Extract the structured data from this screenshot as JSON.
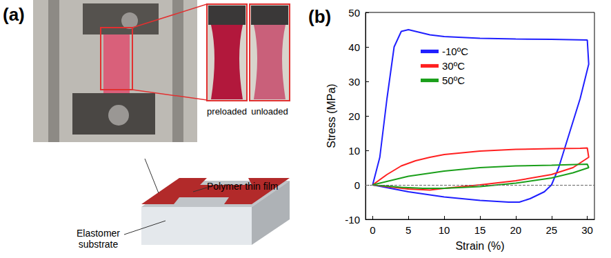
{
  "panel_a": {
    "title": "(a)",
    "photo_labels": [
      "preloaded",
      "unloaded"
    ],
    "schematic_labels": [
      "Polymer thin film",
      "Elastomer substrate"
    ]
  },
  "chart_data": {
    "type": "line",
    "title": "(b)",
    "x_label": "Strain (%)",
    "y_label": "Stress (MPa)",
    "xlim": [
      -1,
      31
    ],
    "xticks": [
      0,
      5,
      10,
      15,
      20,
      25,
      30
    ],
    "ylim": [
      -10,
      50
    ],
    "yticks": [
      -10,
      0,
      10,
      20,
      30,
      40,
      50
    ],
    "grid": false,
    "legend": "upper left",
    "reference_lines": [
      {
        "y": 0,
        "line_style": "dashed"
      }
    ],
    "series": [
      {
        "name": "-10ºC",
        "color": "#1f1fff",
        "x": [
          0,
          1,
          2,
          3,
          4,
          5,
          6,
          8,
          10,
          15,
          20,
          25,
          30,
          30.2,
          29,
          27.5,
          26,
          25,
          24,
          22,
          20.5,
          19,
          15,
          10,
          5,
          2,
          0
        ],
        "values": [
          0,
          8,
          25,
          40,
          44.5,
          45,
          44.5,
          43.5,
          43,
          42.5,
          42.3,
          42.2,
          42,
          35,
          25,
          15,
          5,
          0,
          -2,
          -4,
          -5,
          -5,
          -4.5,
          -3.5,
          -2,
          -0.8,
          0
        ]
      },
      {
        "name": "30ºC",
        "color": "#ff2020",
        "x": [
          0,
          2,
          4,
          6,
          8,
          10,
          15,
          20,
          25,
          29,
          30,
          30.2,
          28,
          25,
          20,
          15,
          10,
          8,
          5,
          2,
          0
        ],
        "values": [
          0,
          3,
          5.5,
          7,
          8,
          8.8,
          9.8,
          10.3,
          10.5,
          10.6,
          10.7,
          8,
          5,
          3,
          1.2,
          0,
          -1,
          -1.5,
          -1.2,
          -0.5,
          0
        ]
      },
      {
        "name": "50ºC",
        "color": "#1a9f1a",
        "x": [
          0,
          3,
          5,
          10,
          15,
          20,
          25,
          30,
          30.2,
          28,
          25,
          20,
          15,
          10,
          7,
          4,
          0
        ],
        "values": [
          0,
          1.5,
          2.5,
          4,
          5,
          5.5,
          5.7,
          6,
          5,
          3.5,
          2,
          0.5,
          -0.5,
          -1,
          -1,
          -0.7,
          0
        ]
      }
    ]
  }
}
